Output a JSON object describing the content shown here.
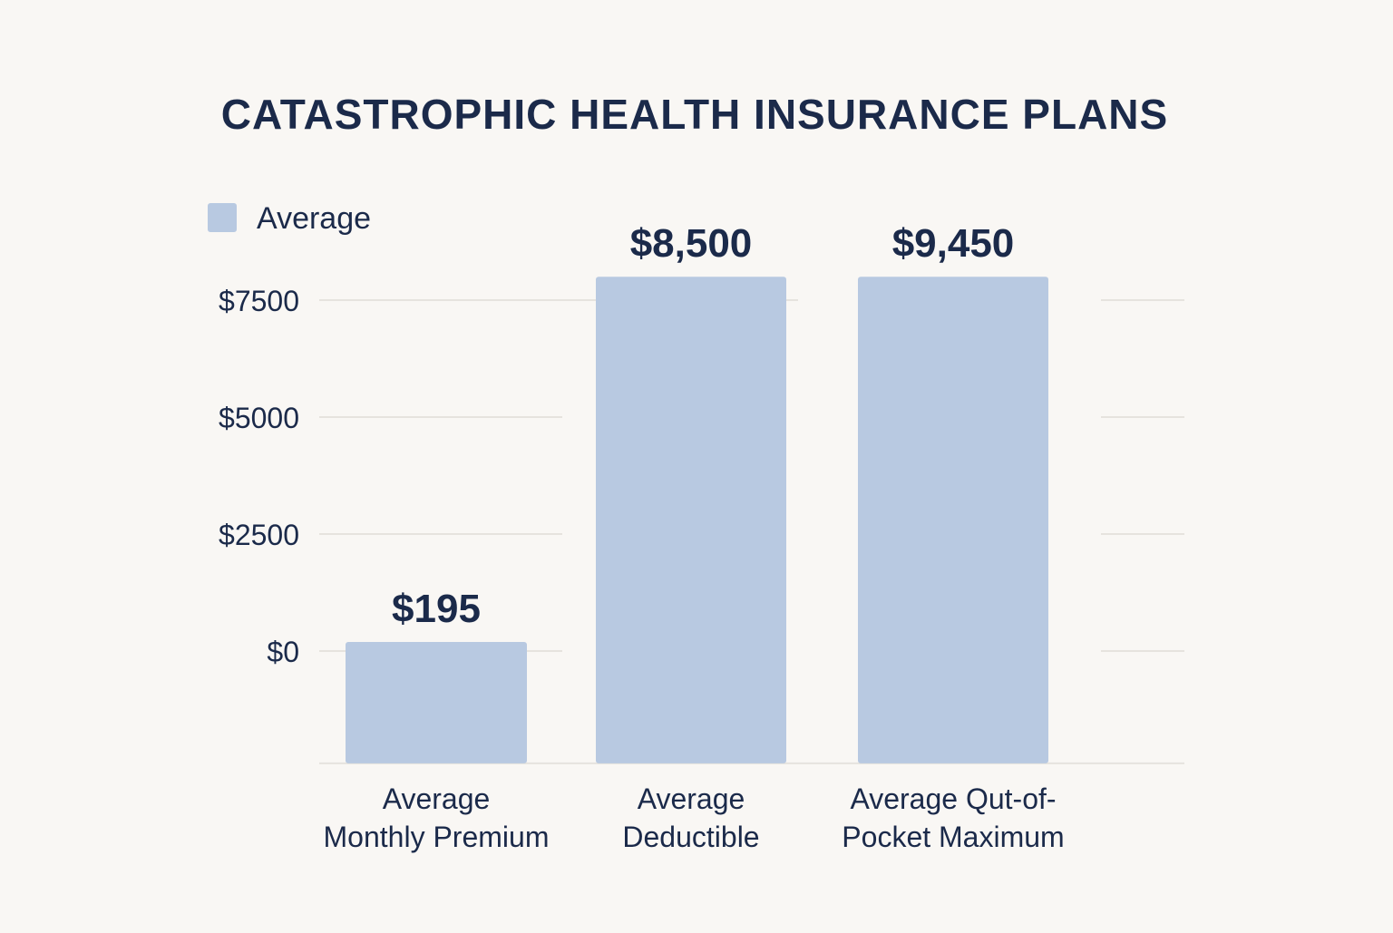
{
  "chart_data": {
    "type": "bar",
    "title": "CATASTROPHIC HEALTH INSURANCE PLANS",
    "xlabel": "",
    "ylabel": "",
    "categories": [
      [
        "Average",
        "Monthly Premium"
      ],
      [
        "Average",
        "Deductible"
      ],
      [
        "Average Qut-of-",
        "Pocket Maximum"
      ]
    ],
    "series": [
      {
        "name": "Average",
        "values": [
          195,
          8500,
          9450
        ],
        "value_labels": [
          "$195",
          "$8,500",
          "$9,450"
        ]
      }
    ],
    "y_ticks": [
      {
        "value": 0,
        "label": "$0"
      },
      {
        "value": 2500,
        "label": "$2500"
      },
      {
        "value": 5000,
        "label": "$5000"
      },
      {
        "value": 7500,
        "label": "$7500"
      }
    ],
    "ylim": [
      -2400,
      8000
    ],
    "grid": true,
    "legend": "top-left",
    "colors": {
      "bar": "#b8c9e1",
      "text": "#1b2a4a",
      "grid": "#e6e3de",
      "background": "#f9f7f4"
    }
  }
}
